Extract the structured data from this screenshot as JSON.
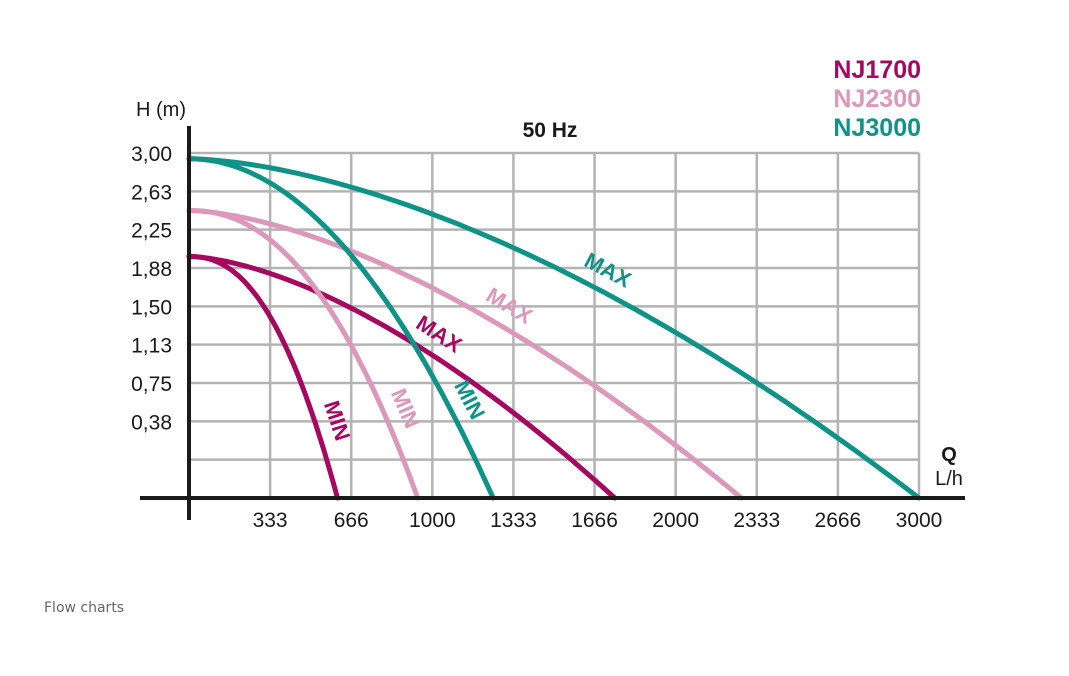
{
  "caption": "Flow charts",
  "colors": {
    "NJ1700": "#a6085f",
    "NJ2300": "#dc98bb",
    "NJ3000": "#0e9386",
    "grid": "#b3b3b3",
    "axis": "#1a1a1a"
  },
  "chart_data": {
    "type": "line",
    "title": "50 Hz",
    "ylabel": "H (m)",
    "xlabel_letter": "Q",
    "xlabel_unit": "L/h",
    "x_ticks": [
      "333",
      "666",
      "1000",
      "1333",
      "1666",
      "2000",
      "2333",
      "2666",
      "3000"
    ],
    "y_ticks": [
      "3,00",
      "2,63",
      "2,25",
      "1,88",
      "1,50",
      "1,13",
      "0,75",
      "0,38"
    ],
    "xlim": [
      0,
      3000
    ],
    "ylim": [
      0,
      3.0
    ],
    "grid": true,
    "legend_position": "top-right",
    "legend": [
      {
        "name": "NJ1700",
        "color": "#a6085f"
      },
      {
        "name": "NJ2300",
        "color": "#dc98bb"
      },
      {
        "name": "NJ3000",
        "color": "#0e9386"
      }
    ],
    "series": [
      {
        "model": "NJ1700",
        "label": "MIN",
        "color": "#a6085f",
        "h0": 2.1,
        "qmax": 610,
        "exp": 2.3
      },
      {
        "model": "NJ1700",
        "label": "MAX",
        "color": "#a6085f",
        "h0": 2.1,
        "qmax": 1750,
        "exp": 1.6
      },
      {
        "model": "NJ2300",
        "label": "MIN",
        "color": "#dc98bb",
        "h0": 2.5,
        "qmax": 940,
        "exp": 2.2
      },
      {
        "model": "NJ2300",
        "label": "MAX",
        "color": "#dc98bb",
        "h0": 2.5,
        "qmax": 2270,
        "exp": 1.6
      },
      {
        "model": "NJ3000",
        "label": "MIN",
        "color": "#0e9386",
        "h0": 2.95,
        "qmax": 1250,
        "exp": 2.0
      },
      {
        "model": "NJ3000",
        "label": "MAX",
        "color": "#0e9386",
        "h0": 2.95,
        "qmax": 3000,
        "exp": 1.65
      }
    ]
  }
}
